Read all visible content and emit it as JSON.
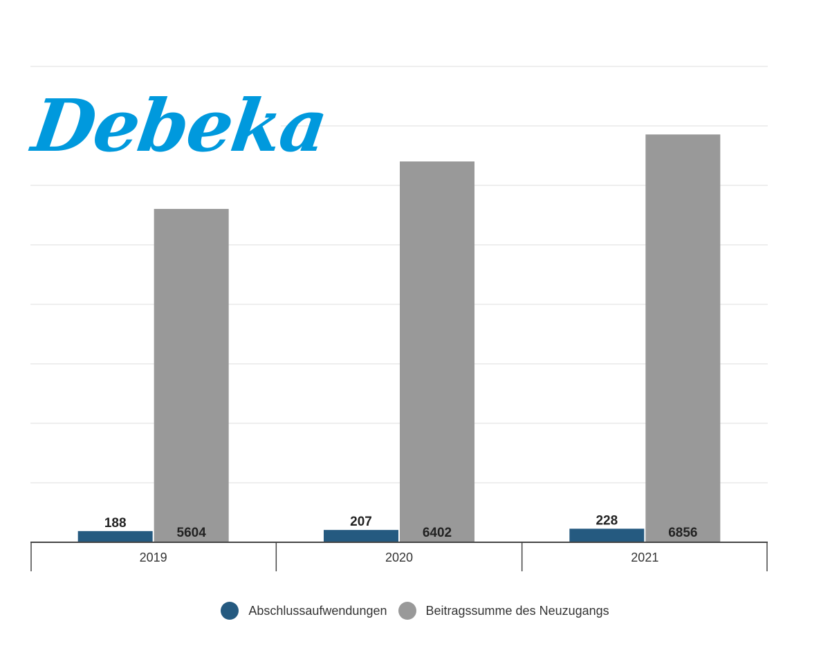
{
  "brand": {
    "logo_text": "Debeka",
    "logo_color": "#0099dd"
  },
  "colors": {
    "series1": "#255a80",
    "series2": "#999999",
    "grid": "#dddddd",
    "axis": "#444444"
  },
  "chart_data": {
    "type": "bar",
    "categories": [
      "2019",
      "2020",
      "2021"
    ],
    "series": [
      {
        "name": "Abschlussaufwendungen",
        "values": [
          188,
          207,
          228
        ],
        "labels": [
          "188",
          "207",
          "228"
        ]
      },
      {
        "name": "Beitragssumme des Neuzugangs",
        "values": [
          5604,
          6402,
          6856
        ],
        "labels": [
          "5604",
          "6402",
          "6856"
        ]
      }
    ],
    "ylim": [
      0,
      8000
    ],
    "grid": true,
    "legend": "bottom-center"
  }
}
